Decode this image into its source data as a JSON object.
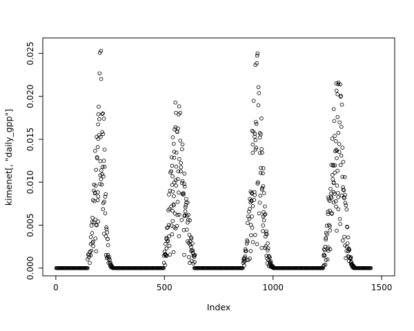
{
  "figure": {
    "background": "#ffffff"
  },
  "chart_data": {
    "type": "scatter",
    "title": "",
    "xlabel": "Index",
    "ylabel": "kimenet[, \"daily_gpp\"]",
    "marker": "open-circle",
    "point_color": "#000000",
    "grid": false,
    "legend": false,
    "x_ticks": [
      0,
      500,
      1000,
      1500
    ],
    "x_tick_labels": [
      "0",
      "500",
      "1000",
      "1500"
    ],
    "y_ticks": [
      0,
      0.005,
      0.01,
      0.015,
      0.02,
      0.025
    ],
    "y_tick_labels": [
      "0.000",
      "0.005",
      "0.010",
      "0.015",
      "0.020",
      "0.025"
    ],
    "x_range": [
      -60,
      1560
    ],
    "y_range": [
      -0.0009,
      0.0268
    ],
    "seed": 20240731,
    "baseline": {
      "value": 0,
      "step": 3,
      "runs": [
        [
          2,
          148
        ],
        [
          262,
          498
        ],
        [
          638,
          862
        ],
        [
          1002,
          1232
        ],
        [
          1372,
          1452
        ]
      ]
    },
    "peaks": [
      {
        "x_start": 148,
        "x_end": 268,
        "center": 206,
        "sigma_left": 24,
        "sigma_right": 17,
        "peak_y": 0.0255
      },
      {
        "x_start": 498,
        "x_end": 640,
        "center": 556,
        "sigma_left": 26,
        "sigma_right": 38,
        "peak_y": 0.0205
      },
      {
        "x_start": 862,
        "x_end": 1004,
        "center": 928,
        "sigma_left": 26,
        "sigma_right": 23,
        "peak_y": 0.0255
      },
      {
        "x_start": 1232,
        "x_end": 1372,
        "center": 1300,
        "sigma_left": 30,
        "sigma_right": 24,
        "peak_y": 0.0245
      }
    ]
  }
}
